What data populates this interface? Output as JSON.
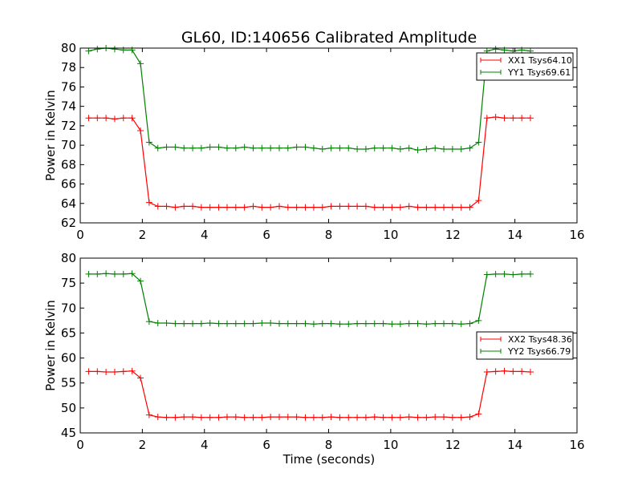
{
  "chart_data": [
    {
      "type": "line",
      "title": "GL60, ID:140656 Calibrated Amplitude",
      "xlabel": "",
      "ylabel": "Power in Kelvin",
      "xlim": [
        0,
        16
      ],
      "ylim": [
        62,
        80
      ],
      "xticks": [
        0,
        2,
        4,
        6,
        8,
        10,
        12,
        14,
        16
      ],
      "yticks": [
        62,
        64,
        66,
        68,
        70,
        72,
        74,
        76,
        78,
        80
      ],
      "grid": false,
      "legend_position": "top-right",
      "x": [
        0.27,
        0.55,
        0.83,
        1.11,
        1.39,
        1.67,
        1.94,
        2.22,
        2.5,
        2.78,
        3.06,
        3.34,
        3.62,
        3.9,
        4.18,
        4.46,
        4.73,
        5.01,
        5.29,
        5.57,
        5.85,
        6.13,
        6.41,
        6.69,
        6.97,
        7.25,
        7.52,
        7.8,
        8.08,
        8.36,
        8.64,
        8.92,
        9.2,
        9.48,
        9.76,
        10.04,
        10.31,
        10.59,
        10.87,
        11.15,
        11.43,
        11.71,
        11.99,
        12.27,
        12.55,
        12.83,
        13.1,
        13.38,
        13.66,
        13.94,
        14.22,
        14.5
      ],
      "series": [
        {
          "name": "XX1 Tsys64.10",
          "color": "#ff0000",
          "values": [
            72.8,
            72.8,
            72.8,
            72.7,
            72.8,
            72.8,
            71.5,
            64.1,
            63.7,
            63.7,
            63.6,
            63.7,
            63.7,
            63.6,
            63.6,
            63.6,
            63.6,
            63.6,
            63.6,
            63.7,
            63.6,
            63.6,
            63.7,
            63.6,
            63.6,
            63.6,
            63.6,
            63.6,
            63.7,
            63.7,
            63.7,
            63.7,
            63.7,
            63.6,
            63.6,
            63.6,
            63.6,
            63.7,
            63.6,
            63.6,
            63.6,
            63.6,
            63.6,
            63.6,
            63.6,
            64.3,
            72.8,
            72.9,
            72.8,
            72.8,
            72.8,
            72.8
          ]
        },
        {
          "name": "YY1 Tsys69.61",
          "color": "#008000",
          "values": [
            79.7,
            79.9,
            80.0,
            79.9,
            79.8,
            79.8,
            78.4,
            70.3,
            69.7,
            69.8,
            69.8,
            69.7,
            69.7,
            69.7,
            69.8,
            69.8,
            69.7,
            69.7,
            69.8,
            69.7,
            69.7,
            69.7,
            69.7,
            69.7,
            69.8,
            69.8,
            69.7,
            69.6,
            69.7,
            69.7,
            69.7,
            69.6,
            69.6,
            69.7,
            69.7,
            69.7,
            69.6,
            69.7,
            69.5,
            69.6,
            69.7,
            69.6,
            69.6,
            69.6,
            69.7,
            70.3,
            79.7,
            79.9,
            79.8,
            79.7,
            79.8,
            79.7
          ]
        }
      ]
    },
    {
      "type": "line",
      "title": "",
      "xlabel": "Time (seconds)",
      "ylabel": "Power in Kelvin",
      "xlim": [
        0,
        16
      ],
      "ylim": [
        45,
        80
      ],
      "xticks": [
        0,
        2,
        4,
        6,
        8,
        10,
        12,
        14,
        16
      ],
      "yticks": [
        45,
        50,
        55,
        60,
        65,
        70,
        75,
        80
      ],
      "grid": false,
      "legend_position": "center-right",
      "x": [
        0.27,
        0.55,
        0.83,
        1.11,
        1.39,
        1.67,
        1.94,
        2.22,
        2.5,
        2.78,
        3.06,
        3.34,
        3.62,
        3.9,
        4.18,
        4.46,
        4.73,
        5.01,
        5.29,
        5.57,
        5.85,
        6.13,
        6.41,
        6.69,
        6.97,
        7.25,
        7.52,
        7.8,
        8.08,
        8.36,
        8.64,
        8.92,
        9.2,
        9.48,
        9.76,
        10.04,
        10.31,
        10.59,
        10.87,
        11.15,
        11.43,
        11.71,
        11.99,
        12.27,
        12.55,
        12.83,
        13.1,
        13.38,
        13.66,
        13.94,
        14.22,
        14.5
      ],
      "series": [
        {
          "name": "XX2 Tsys48.36",
          "color": "#ff0000",
          "values": [
            57.3,
            57.3,
            57.2,
            57.2,
            57.3,
            57.4,
            56.0,
            48.6,
            48.2,
            48.1,
            48.1,
            48.2,
            48.2,
            48.1,
            48.1,
            48.1,
            48.2,
            48.2,
            48.1,
            48.1,
            48.1,
            48.2,
            48.2,
            48.2,
            48.2,
            48.1,
            48.1,
            48.1,
            48.2,
            48.1,
            48.1,
            48.1,
            48.1,
            48.2,
            48.1,
            48.1,
            48.1,
            48.2,
            48.1,
            48.1,
            48.2,
            48.2,
            48.1,
            48.1,
            48.2,
            48.8,
            57.2,
            57.3,
            57.4,
            57.3,
            57.3,
            57.2
          ]
        },
        {
          "name": "YY2 Tsys66.79",
          "color": "#008000",
          "values": [
            76.8,
            76.8,
            76.9,
            76.8,
            76.8,
            76.9,
            75.4,
            67.3,
            67.0,
            67.0,
            66.9,
            66.9,
            66.9,
            66.9,
            67.0,
            66.9,
            66.9,
            66.9,
            66.9,
            66.9,
            67.0,
            67.0,
            66.9,
            66.9,
            66.9,
            66.9,
            66.8,
            66.9,
            66.9,
            66.8,
            66.8,
            66.9,
            66.9,
            66.9,
            66.9,
            66.8,
            66.8,
            66.9,
            66.9,
            66.8,
            66.9,
            66.9,
            66.9,
            66.8,
            66.9,
            67.5,
            76.7,
            76.8,
            76.8,
            76.7,
            76.8,
            76.8
          ]
        }
      ]
    }
  ]
}
